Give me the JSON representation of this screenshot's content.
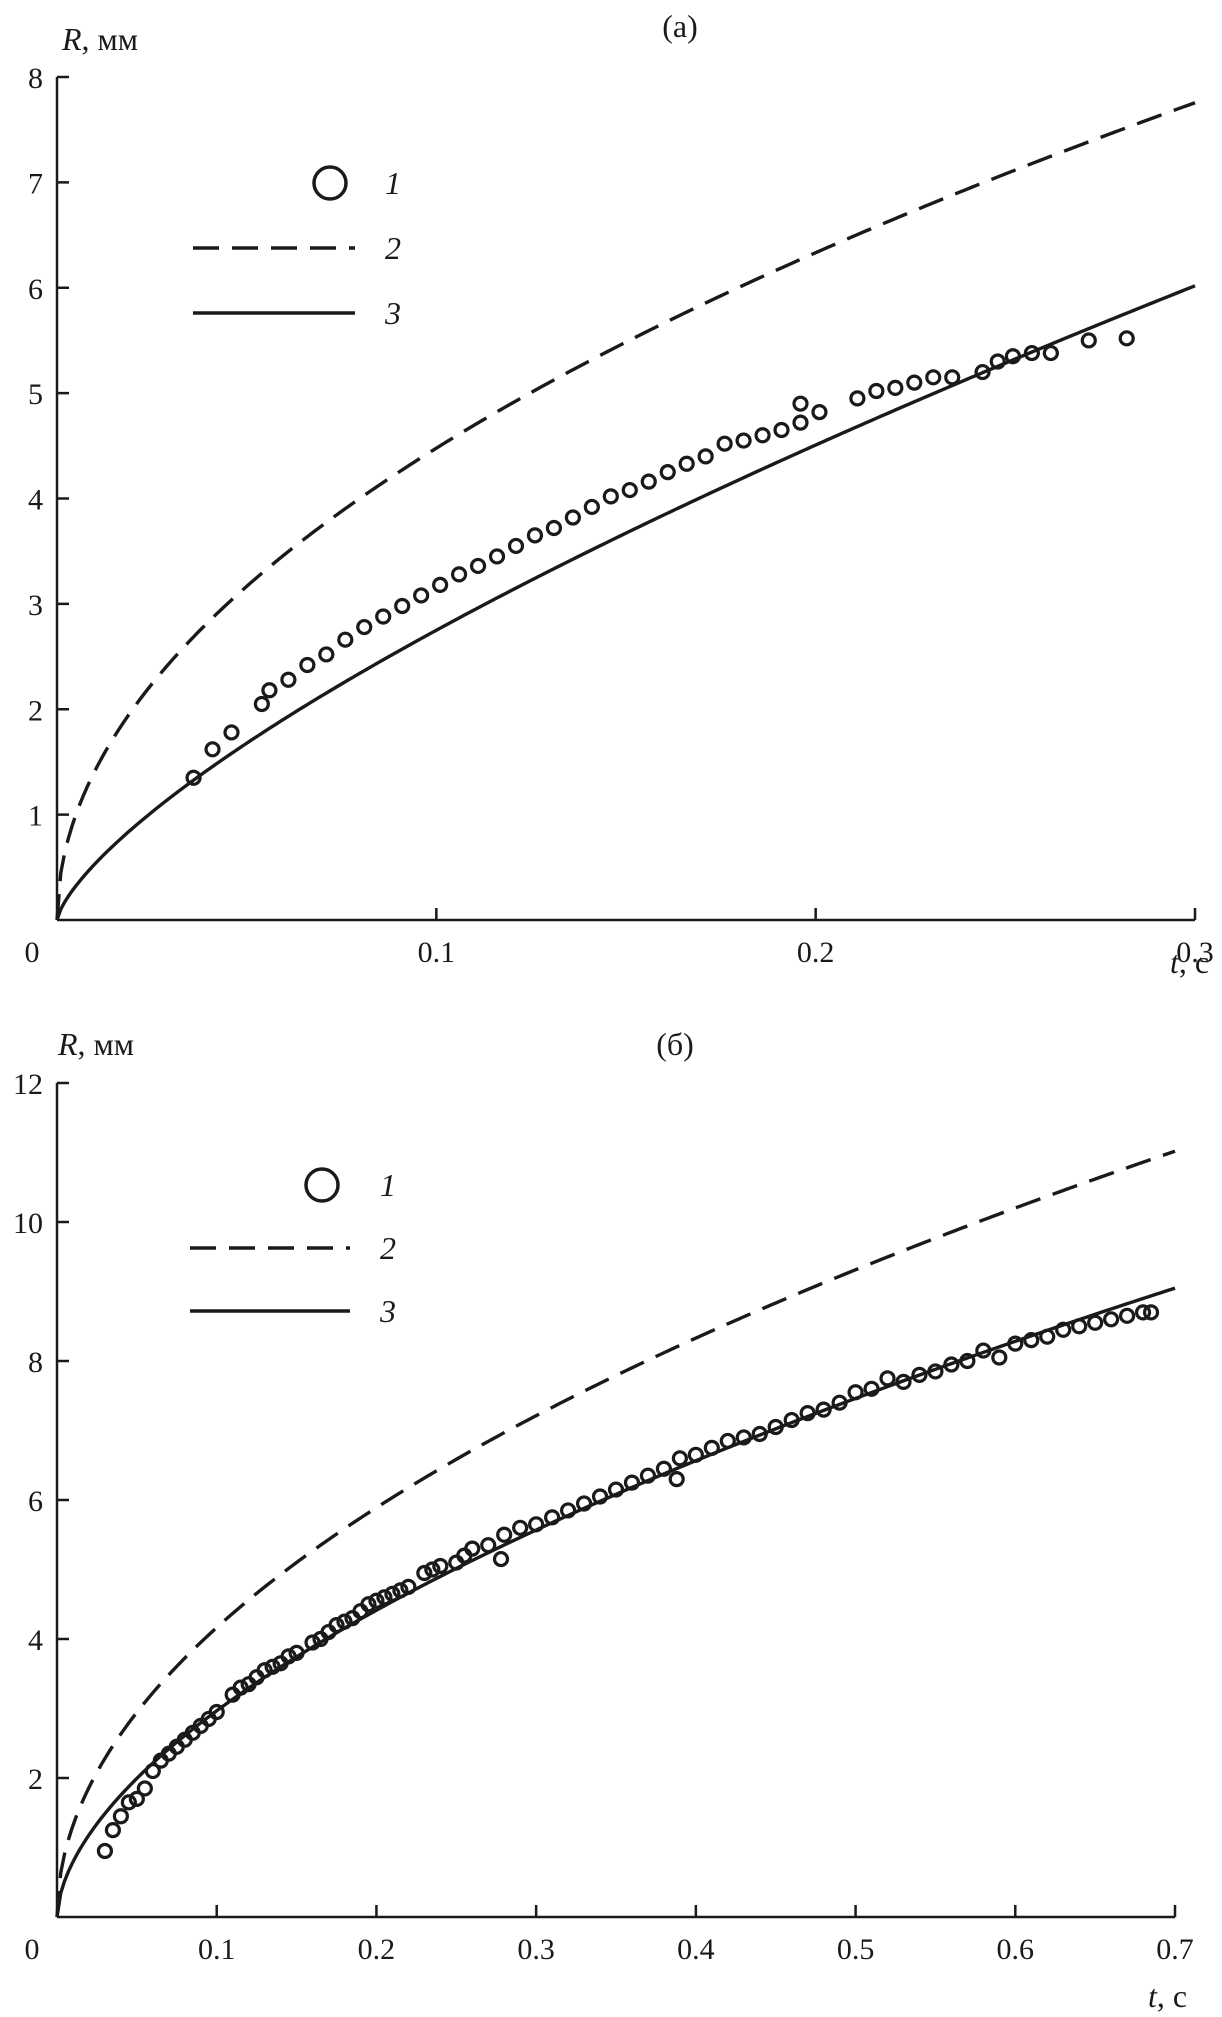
{
  "chart_data": [
    {
      "type": "scatter+line",
      "panel_label": "(а)",
      "xlabel_var": "t",
      "xlabel_unit": ", с",
      "ylabel_var": "R",
      "ylabel_unit": ", мм",
      "xlim": [
        0,
        0.3
      ],
      "ylim": [
        0,
        8
      ],
      "xticks": [
        0,
        0.1,
        0.2,
        0.3
      ],
      "xtick_labels": [
        "0",
        "0.1",
        "0.2",
        "0.3"
      ],
      "yticks": [
        1,
        2,
        3,
        4,
        5,
        6,
        7,
        8
      ],
      "ytick_labels": [
        "1",
        "2",
        "3",
        "4",
        "5",
        "6",
        "7",
        "8"
      ],
      "grid": false,
      "legend_position": "top-left",
      "legend": [
        {
          "label": "1",
          "style": "circle"
        },
        {
          "label": "2",
          "style": "dashed"
        },
        {
          "label": "3",
          "style": "solid"
        }
      ],
      "series": [
        {
          "name": "1",
          "style": "markers",
          "x": [
            0.036,
            0.041,
            0.046,
            0.054,
            0.056,
            0.061,
            0.066,
            0.071,
            0.076,
            0.081,
            0.086,
            0.091,
            0.096,
            0.101,
            0.106,
            0.111,
            0.116,
            0.121,
            0.126,
            0.131,
            0.136,
            0.141,
            0.146,
            0.151,
            0.156,
            0.161,
            0.166,
            0.171,
            0.176,
            0.181,
            0.186,
            0.191,
            0.196,
            0.196,
            0.201,
            0.211,
            0.216,
            0.221,
            0.226,
            0.231,
            0.236,
            0.244,
            0.248,
            0.252,
            0.257,
            0.262,
            0.272,
            0.282
          ],
          "y": [
            1.35,
            1.62,
            1.78,
            2.05,
            2.18,
            2.28,
            2.42,
            2.52,
            2.66,
            2.78,
            2.88,
            2.98,
            3.08,
            3.18,
            3.28,
            3.36,
            3.45,
            3.55,
            3.65,
            3.72,
            3.82,
            3.92,
            4.02,
            4.08,
            4.16,
            4.25,
            4.33,
            4.4,
            4.52,
            4.55,
            4.6,
            4.65,
            4.72,
            4.9,
            4.82,
            4.95,
            5.02,
            5.05,
            5.1,
            5.15,
            5.15,
            5.2,
            5.3,
            5.35,
            5.38,
            5.38,
            5.5,
            5.52
          ]
        },
        {
          "name": "2",
          "style": "dashed",
          "model": {
            "a": 14.16,
            "p": 0.5
          }
        },
        {
          "name": "3",
          "style": "solid",
          "model": {
            "a": 14.2,
            "p": 0.713
          }
        }
      ]
    },
    {
      "type": "scatter+line",
      "panel_label": "(б)",
      "xlabel_var": "t",
      "xlabel_unit": ", с",
      "ylabel_var": "R",
      "ylabel_unit": ", мм",
      "xlim": [
        0,
        0.7
      ],
      "ylim": [
        0,
        12
      ],
      "xticks": [
        0,
        0.1,
        0.2,
        0.3,
        0.4,
        0.5,
        0.6,
        0.7
      ],
      "xtick_labels": [
        "0",
        "0.1",
        "0.2",
        "0.3",
        "0.4",
        "0.5",
        "0.6",
        "0.7"
      ],
      "yticks": [
        2,
        4,
        6,
        8,
        10,
        12
      ],
      "ytick_labels": [
        "2",
        "4",
        "6",
        "8",
        "10",
        "12"
      ],
      "grid": false,
      "legend_position": "top-left",
      "legend": [
        {
          "label": "1",
          "style": "circle"
        },
        {
          "label": "2",
          "style": "dashed"
        },
        {
          "label": "3",
          "style": "solid"
        }
      ],
      "series": [
        {
          "name": "1",
          "style": "markers",
          "x": [
            0.03,
            0.035,
            0.04,
            0.045,
            0.05,
            0.055,
            0.06,
            0.065,
            0.07,
            0.075,
            0.08,
            0.085,
            0.09,
            0.095,
            0.1,
            0.11,
            0.115,
            0.12,
            0.125,
            0.13,
            0.135,
            0.14,
            0.145,
            0.15,
            0.16,
            0.165,
            0.17,
            0.175,
            0.18,
            0.185,
            0.19,
            0.195,
            0.2,
            0.205,
            0.21,
            0.215,
            0.22,
            0.23,
            0.235,
            0.24,
            0.25,
            0.255,
            0.26,
            0.27,
            0.278,
            0.28,
            0.29,
            0.3,
            0.31,
            0.32,
            0.33,
            0.34,
            0.35,
            0.36,
            0.37,
            0.38,
            0.388,
            0.39,
            0.4,
            0.41,
            0.42,
            0.43,
            0.44,
            0.45,
            0.46,
            0.47,
            0.48,
            0.49,
            0.5,
            0.51,
            0.52,
            0.53,
            0.54,
            0.55,
            0.56,
            0.57,
            0.58,
            0.59,
            0.6,
            0.61,
            0.62,
            0.63,
            0.64,
            0.65,
            0.66,
            0.67,
            0.68,
            0.685
          ],
          "y": [
            0.95,
            1.25,
            1.45,
            1.65,
            1.7,
            1.85,
            2.1,
            2.25,
            2.35,
            2.45,
            2.55,
            2.65,
            2.75,
            2.85,
            2.95,
            3.2,
            3.3,
            3.35,
            3.45,
            3.55,
            3.6,
            3.65,
            3.75,
            3.8,
            3.95,
            4.0,
            4.1,
            4.2,
            4.25,
            4.3,
            4.4,
            4.5,
            4.55,
            4.6,
            4.65,
            4.7,
            4.75,
            4.95,
            5.0,
            5.05,
            5.1,
            5.2,
            5.3,
            5.35,
            5.15,
            5.5,
            5.6,
            5.65,
            5.75,
            5.85,
            5.95,
            6.05,
            6.15,
            6.25,
            6.35,
            6.45,
            6.3,
            6.6,
            6.65,
            6.75,
            6.85,
            6.9,
            6.95,
            7.05,
            7.15,
            7.25,
            7.3,
            7.4,
            7.55,
            7.6,
            7.75,
            7.7,
            7.8,
            7.85,
            7.95,
            8.0,
            8.15,
            8.05,
            8.25,
            8.3,
            8.35,
            8.45,
            8.5,
            8.55,
            8.6,
            8.65,
            8.7,
            8.7
          ]
        },
        {
          "name": "2",
          "style": "dashed",
          "model": {
            "a": 13.17,
            "p": 0.5
          }
        },
        {
          "name": "3",
          "style": "solid",
          "model": {
            "a": 11.1,
            "p": 0.573
          }
        }
      ]
    }
  ]
}
